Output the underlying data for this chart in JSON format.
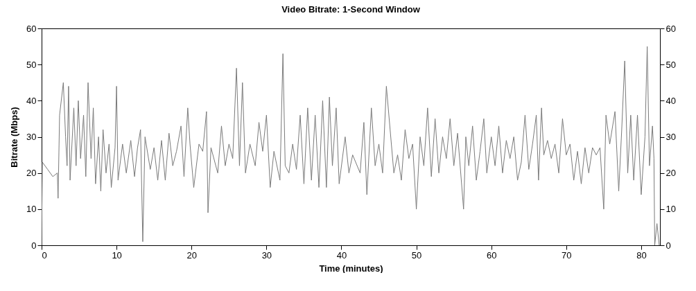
{
  "chart_data": {
    "type": "line",
    "title": "Video Bitrate: 1-Second Window",
    "xlabel": "Time (minutes)",
    "ylabel": "Bitrate (Mbps)",
    "xlim": [
      0,
      82.5
    ],
    "xticks": [
      0,
      10,
      20,
      30,
      40,
      50,
      60,
      70,
      80
    ],
    "ylim": [
      0,
      60
    ],
    "yticks": [
      0,
      10,
      20,
      30,
      40,
      50,
      60
    ],
    "y2lim": [
      0,
      60
    ],
    "y2ticks": [
      0,
      10,
      20,
      30,
      40,
      50,
      60
    ],
    "grid": false,
    "series": [
      {
        "color": "#7a7a7a",
        "x": [
          0,
          0.1,
          0.8,
          1.5,
          2.1,
          2.2,
          2.4,
          2.9,
          3.2,
          3.4,
          3.6,
          3.8,
          4.3,
          4.6,
          4.9,
          5.2,
          5.6,
          5.9,
          6.2,
          6.6,
          6.9,
          7.2,
          7.6,
          7.9,
          8.2,
          8.6,
          9.0,
          9.3,
          9.8,
          10.0,
          10.2,
          10.8,
          11.3,
          11.9,
          12.4,
          12.8,
          13.2,
          13.5,
          13.8,
          14.5,
          15.0,
          15.5,
          16.0,
          16.5,
          17.0,
          17.5,
          18.0,
          18.6,
          19.0,
          19.5,
          19.8,
          20.3,
          21.0,
          21.5,
          22.0,
          22.2,
          22.6,
          23.5,
          24.0,
          24.5,
          25.0,
          25.5,
          26.0,
          26.4,
          26.8,
          27.2,
          27.8,
          28.5,
          29.0,
          29.5,
          30.0,
          30.5,
          31.0,
          31.8,
          32.2,
          32.5,
          33.0,
          33.5,
          34.0,
          34.5,
          35.0,
          35.5,
          36.0,
          36.5,
          37.0,
          37.5,
          38.0,
          38.4,
          38.8,
          39.3,
          39.7,
          40.5,
          41.0,
          41.5,
          42.5,
          43.0,
          43.4,
          44.0,
          44.5,
          45.0,
          45.5,
          46.0,
          46.5,
          47.0,
          47.5,
          48.0,
          48.5,
          49.0,
          49.5,
          50.0,
          50.5,
          51.0,
          51.5,
          52.0,
          52.5,
          53.0,
          53.5,
          54.0,
          54.5,
          55.0,
          55.5,
          56.3,
          56.6,
          57.0,
          57.5,
          58.0,
          58.5,
          59.0,
          59.4,
          60.0,
          60.5,
          61.0,
          61.5,
          62.0,
          62.5,
          63.0,
          63.5,
          64.0,
          64.5,
          65.0,
          65.5,
          66.0,
          66.3,
          66.7,
          67.0,
          67.5,
          68.0,
          68.5,
          69.0,
          69.5,
          70.0,
          70.5,
          71.0,
          71.5,
          72.0,
          72.5,
          73.0,
          73.5,
          74.0,
          74.5,
          75.0,
          75.3,
          75.8,
          76.5,
          77.0,
          77.4,
          77.8,
          78.2,
          78.6,
          79.0,
          79.5,
          80.0,
          80.5,
          80.8,
          81.1,
          81.5,
          81.7,
          81.8,
          82.1,
          82.4
        ],
        "values": [
          0,
          23,
          21,
          19,
          20,
          13,
          36,
          45,
          30,
          22,
          44,
          18,
          38,
          22,
          40,
          24,
          36,
          19,
          45,
          24,
          38,
          17,
          30,
          15,
          32,
          20,
          28,
          16,
          27,
          44,
          18,
          28,
          20,
          29,
          19,
          27,
          32,
          1,
          30,
          21,
          27,
          18,
          29,
          18,
          31,
          22,
          26,
          33,
          19,
          38,
          28,
          16,
          28,
          26,
          37,
          9,
          27,
          20,
          33,
          22,
          28,
          24,
          49,
          22,
          45,
          20,
          28,
          22,
          34,
          26,
          36,
          16,
          26,
          18,
          53,
          22,
          20,
          28,
          21,
          36,
          17,
          38,
          18,
          36,
          16,
          40,
          16,
          41,
          22,
          38,
          17,
          30,
          20,
          25,
          20,
          34,
          14,
          38,
          22,
          28,
          20,
          44,
          32,
          20,
          25,
          18,
          32,
          24,
          28,
          10,
          30,
          22,
          38,
          19,
          35,
          20,
          30,
          24,
          35,
          22,
          31,
          10,
          30,
          22,
          33,
          18,
          26,
          35,
          20,
          30,
          22,
          33,
          20,
          29,
          24,
          30,
          18,
          23,
          36,
          21,
          28,
          36,
          18,
          38,
          25,
          29,
          24,
          28,
          20,
          35,
          25,
          28,
          18,
          26,
          17,
          27,
          20,
          27,
          25,
          27,
          10,
          36,
          28,
          37,
          15,
          32,
          51,
          20,
          36,
          18,
          36,
          14,
          30,
          55,
          22,
          33,
          24,
          0,
          6,
          0
        ]
      }
    ]
  }
}
